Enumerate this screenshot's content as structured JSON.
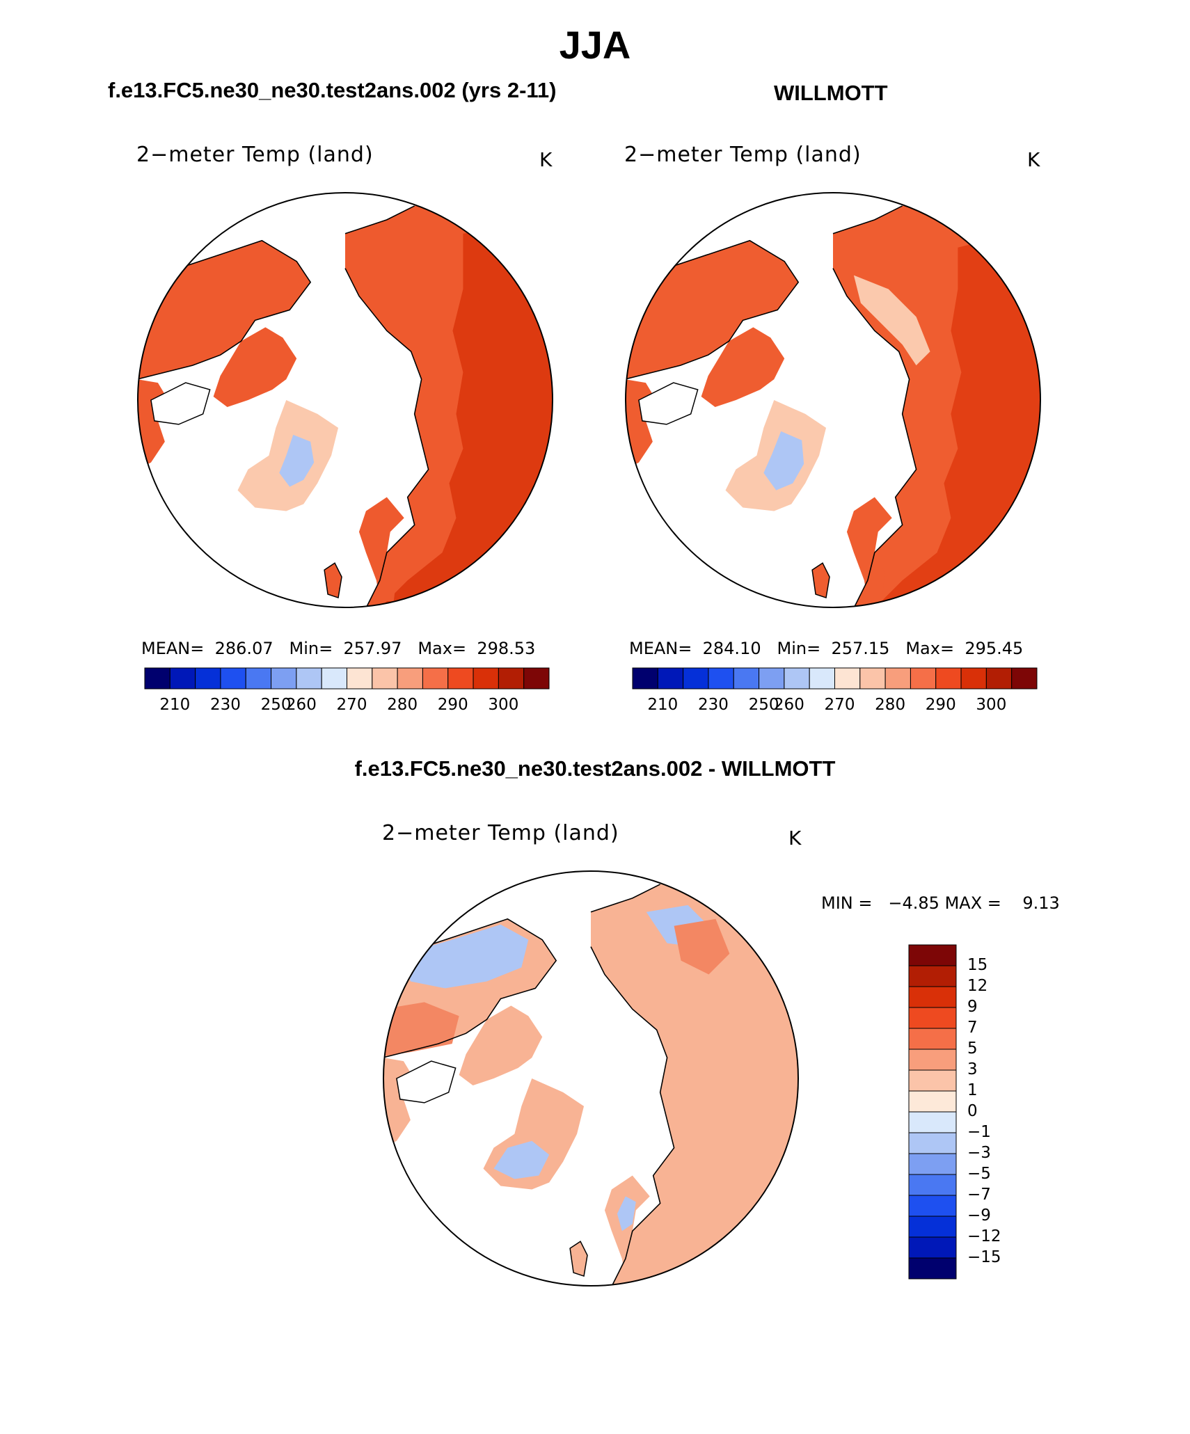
{
  "title": "JJA",
  "panels": {
    "model": {
      "title": "f.e13.FC5.ne30_ne30.test2ans.002 (yrs 2-11)",
      "variable": "2−meter Temp (land)",
      "units": "K",
      "stats": {
        "mean_label": "MEAN=",
        "mean": "286.07",
        "min_label": "Min=",
        "min": "257.97",
        "max_label": "Max=",
        "max": "298.53"
      }
    },
    "obs": {
      "title": "WILLMOTT",
      "variable": "2−meter Temp (land)",
      "units": "K",
      "stats": {
        "mean_label": "MEAN=",
        "mean": "284.10",
        "min_label": "Min=",
        "min": "257.15",
        "max_label": "Max=",
        "max": "295.45"
      }
    },
    "diff": {
      "title": "f.e13.FC5.ne30_ne30.test2ans.002 - WILLMOTT",
      "variable": "2−meter Temp (land)",
      "units": "K",
      "stats": {
        "min_label": "MIN =",
        "min": "−4.85",
        "max_label": "MAX =",
        "max": "9.13"
      }
    }
  },
  "colorbar_abs": {
    "colors": [
      "#00006e",
      "#0018b8",
      "#0530d8",
      "#1e50f0",
      "#4a78f2",
      "#7d9ff2",
      "#aec6f5",
      "#d9e8fb",
      "#fde4d3",
      "#fbc4a9",
      "#f89e7c",
      "#f56f48",
      "#ee4a20",
      "#d93008",
      "#b21e04",
      "#7d0606"
    ],
    "labels": [
      "210",
      "230",
      "250",
      "260",
      "270",
      "280",
      "290",
      "300"
    ]
  },
  "colorbar_diff": {
    "colors": [
      "#7d0606",
      "#b21e04",
      "#d93008",
      "#ee4a20",
      "#f56f48",
      "#f89e7c",
      "#fbc4a9",
      "#fde9d9",
      "#d9e8fb",
      "#aec6f5",
      "#7d9ff2",
      "#4a78f2",
      "#1e50f0",
      "#0530d8",
      "#0018b8",
      "#00006e"
    ],
    "labels": [
      "15",
      "12",
      "9",
      "7",
      "5",
      "3",
      "1",
      "0",
      "−1",
      "−3",
      "−5",
      "−7",
      "−9",
      "−12",
      "−15"
    ]
  },
  "map_colors": {
    "model_land": "#ee5a2e",
    "model_warm": "#dd3a10",
    "obs_land": "#ef5d30",
    "obs_warm": "#e23f14",
    "greenland_outer": "#fbc9ad",
    "greenland_inner": "#aec6f5",
    "diff_land": "#f8b394",
    "diff_blue": "#aec6f5",
    "diff_warm": "#f38763",
    "coast": "#000000"
  }
}
